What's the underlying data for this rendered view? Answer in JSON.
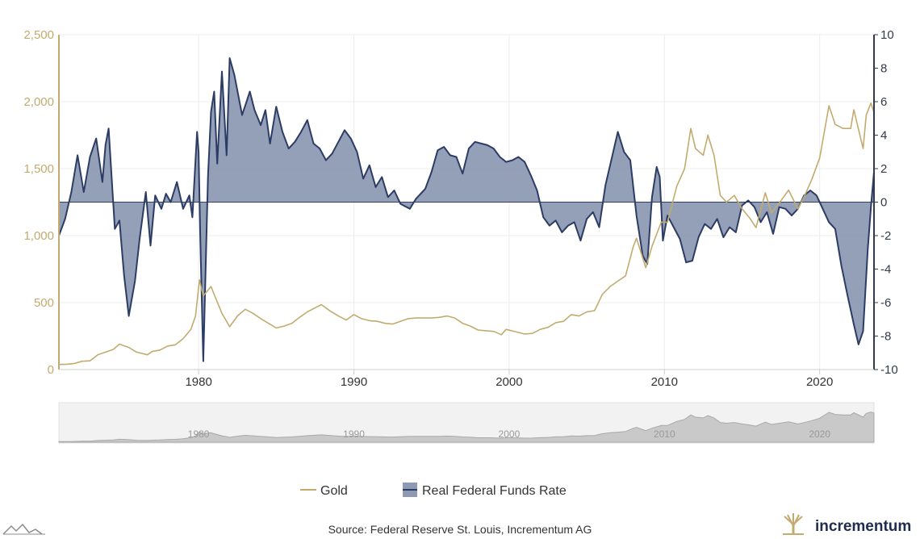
{
  "chart_data": {
    "type": "line",
    "x_range": [
      1971,
      2023.5
    ],
    "x_ticks": [
      "1980",
      "1990",
      "2000",
      "2010",
      "2020"
    ],
    "y_left": {
      "min": 0,
      "max": 2500,
      "ticks": [
        "0",
        "500",
        "1,000",
        "1,500",
        "2,000",
        "2,500"
      ],
      "color": "#c2ab6e"
    },
    "y_right": {
      "min": -10,
      "max": 10,
      "ticks": [
        "-10",
        "-8",
        "-6",
        "-4",
        "-2",
        "0",
        "2",
        "4",
        "6",
        "8",
        "10"
      ],
      "color": "#333a4a"
    },
    "grid": true,
    "legend_position": "bottom-center",
    "series": [
      {
        "name": "Gold",
        "axis": "left",
        "kind": "line",
        "color": "#c2ab6e",
        "points": [
          [
            1971.0,
            38
          ],
          [
            1971.5,
            40
          ],
          [
            1972.0,
            46
          ],
          [
            1972.5,
            62
          ],
          [
            1973.0,
            65
          ],
          [
            1973.5,
            110
          ],
          [
            1974.0,
            130
          ],
          [
            1974.5,
            150
          ],
          [
            1974.9,
            190
          ],
          [
            1975.5,
            165
          ],
          [
            1976.0,
            130
          ],
          [
            1976.7,
            110
          ],
          [
            1977.0,
            135
          ],
          [
            1977.5,
            145
          ],
          [
            1978.0,
            175
          ],
          [
            1978.5,
            185
          ],
          [
            1979.0,
            230
          ],
          [
            1979.5,
            300
          ],
          [
            1979.8,
            400
          ],
          [
            1980.05,
            670
          ],
          [
            1980.3,
            550
          ],
          [
            1980.8,
            620
          ],
          [
            1981.0,
            560
          ],
          [
            1981.5,
            420
          ],
          [
            1982.0,
            320
          ],
          [
            1982.5,
            400
          ],
          [
            1983.0,
            450
          ],
          [
            1983.5,
            420
          ],
          [
            1984.0,
            380
          ],
          [
            1984.5,
            345
          ],
          [
            1985.0,
            310
          ],
          [
            1985.5,
            325
          ],
          [
            1986.0,
            345
          ],
          [
            1986.5,
            390
          ],
          [
            1987.0,
            430
          ],
          [
            1987.5,
            460
          ],
          [
            1987.9,
            485
          ],
          [
            1988.5,
            435
          ],
          [
            1989.0,
            400
          ],
          [
            1989.5,
            370
          ],
          [
            1990.0,
            410
          ],
          [
            1990.5,
            380
          ],
          [
            1991.0,
            365
          ],
          [
            1991.5,
            360
          ],
          [
            1992.0,
            345
          ],
          [
            1992.5,
            340
          ],
          [
            1993.0,
            360
          ],
          [
            1993.5,
            380
          ],
          [
            1994.0,
            385
          ],
          [
            1994.5,
            385
          ],
          [
            1995.0,
            385
          ],
          [
            1995.5,
            390
          ],
          [
            1996.0,
            400
          ],
          [
            1996.5,
            385
          ],
          [
            1997.0,
            345
          ],
          [
            1997.5,
            325
          ],
          [
            1998.0,
            295
          ],
          [
            1998.5,
            290
          ],
          [
            1999.0,
            285
          ],
          [
            1999.5,
            260
          ],
          [
            1999.8,
            300
          ],
          [
            2000.5,
            280
          ],
          [
            2001.0,
            265
          ],
          [
            2001.5,
            270
          ],
          [
            2002.0,
            300
          ],
          [
            2002.5,
            315
          ],
          [
            2003.0,
            350
          ],
          [
            2003.5,
            360
          ],
          [
            2004.0,
            410
          ],
          [
            2004.5,
            400
          ],
          [
            2005.0,
            430
          ],
          [
            2005.5,
            440
          ],
          [
            2006.0,
            560
          ],
          [
            2006.5,
            620
          ],
          [
            2007.0,
            660
          ],
          [
            2007.5,
            700
          ],
          [
            2008.0,
            920
          ],
          [
            2008.2,
            980
          ],
          [
            2008.8,
            760
          ],
          [
            2009.2,
            920
          ],
          [
            2009.8,
            1100
          ],
          [
            2010.2,
            1100
          ],
          [
            2010.8,
            1370
          ],
          [
            2011.3,
            1500
          ],
          [
            2011.7,
            1800
          ],
          [
            2012.0,
            1650
          ],
          [
            2012.5,
            1600
          ],
          [
            2012.8,
            1750
          ],
          [
            2013.2,
            1600
          ],
          [
            2013.6,
            1300
          ],
          [
            2014.0,
            1250
          ],
          [
            2014.5,
            1300
          ],
          [
            2015.0,
            1200
          ],
          [
            2015.5,
            1130
          ],
          [
            2015.9,
            1060
          ],
          [
            2016.5,
            1320
          ],
          [
            2016.9,
            1170
          ],
          [
            2017.5,
            1260
          ],
          [
            2018.0,
            1340
          ],
          [
            2018.6,
            1200
          ],
          [
            2019.0,
            1290
          ],
          [
            2019.5,
            1420
          ],
          [
            2020.0,
            1580
          ],
          [
            2020.6,
            1970
          ],
          [
            2021.0,
            1830
          ],
          [
            2021.5,
            1800
          ],
          [
            2022.0,
            1800
          ],
          [
            2022.2,
            1940
          ],
          [
            2022.8,
            1650
          ],
          [
            2023.0,
            1900
          ],
          [
            2023.3,
            1990
          ],
          [
            2023.5,
            1920
          ]
        ]
      },
      {
        "name": "Real Federal Funds Rate",
        "axis": "right",
        "kind": "area",
        "color": "#2c3c64",
        "fill": "#8e9ab4",
        "points": [
          [
            1971.0,
            -2.0
          ],
          [
            1971.4,
            -1.0
          ],
          [
            1971.8,
            0.6
          ],
          [
            1972.2,
            2.8
          ],
          [
            1972.6,
            0.6
          ],
          [
            1973.0,
            2.7
          ],
          [
            1973.4,
            3.8
          ],
          [
            1973.8,
            1.2
          ],
          [
            1974.0,
            3.4
          ],
          [
            1974.2,
            4.4
          ],
          [
            1974.6,
            -1.6
          ],
          [
            1974.9,
            -1.1
          ],
          [
            1975.2,
            -4.4
          ],
          [
            1975.5,
            -6.8
          ],
          [
            1975.9,
            -4.7
          ],
          [
            1976.2,
            -2.2
          ],
          [
            1976.6,
            0.6
          ],
          [
            1976.9,
            -2.6
          ],
          [
            1977.2,
            0.4
          ],
          [
            1977.6,
            -0.4
          ],
          [
            1977.9,
            0.5
          ],
          [
            1978.2,
            0.0
          ],
          [
            1978.6,
            1.2
          ],
          [
            1979.0,
            -0.4
          ],
          [
            1979.4,
            0.4
          ],
          [
            1979.6,
            -0.9
          ],
          [
            1979.9,
            4.2
          ],
          [
            1980.0,
            3.0
          ],
          [
            1980.1,
            -2.0
          ],
          [
            1980.3,
            -9.5
          ],
          [
            1980.6,
            1.5
          ],
          [
            1980.8,
            5.4
          ],
          [
            1981.0,
            6.6
          ],
          [
            1981.2,
            2.3
          ],
          [
            1981.5,
            7.8
          ],
          [
            1981.8,
            2.8
          ],
          [
            1982.0,
            8.6
          ],
          [
            1982.3,
            7.6
          ],
          [
            1982.8,
            5.2
          ],
          [
            1983.3,
            6.6
          ],
          [
            1983.6,
            5.5
          ],
          [
            1984.0,
            4.6
          ],
          [
            1984.3,
            5.5
          ],
          [
            1984.6,
            3.5
          ],
          [
            1985.0,
            5.7
          ],
          [
            1985.4,
            4.2
          ],
          [
            1985.8,
            3.2
          ],
          [
            1986.2,
            3.6
          ],
          [
            1986.6,
            4.2
          ],
          [
            1987.0,
            4.9
          ],
          [
            1987.4,
            3.5
          ],
          [
            1987.8,
            3.2
          ],
          [
            1988.2,
            2.5
          ],
          [
            1988.6,
            2.9
          ],
          [
            1989.0,
            3.6
          ],
          [
            1989.4,
            4.3
          ],
          [
            1989.8,
            3.8
          ],
          [
            1990.2,
            3.0
          ],
          [
            1990.6,
            1.4
          ],
          [
            1991.0,
            2.2
          ],
          [
            1991.4,
            0.9
          ],
          [
            1991.8,
            1.5
          ],
          [
            1992.2,
            0.3
          ],
          [
            1992.6,
            0.7
          ],
          [
            1993.0,
            -0.1
          ],
          [
            1993.6,
            -0.4
          ],
          [
            1994.0,
            0.2
          ],
          [
            1994.6,
            0.8
          ],
          [
            1995.0,
            1.8
          ],
          [
            1995.4,
            3.1
          ],
          [
            1995.8,
            3.3
          ],
          [
            1996.2,
            2.8
          ],
          [
            1996.6,
            2.7
          ],
          [
            1997.0,
            1.7
          ],
          [
            1997.4,
            3.2
          ],
          [
            1997.8,
            3.6
          ],
          [
            1998.2,
            3.5
          ],
          [
            1998.6,
            3.4
          ],
          [
            1999.0,
            3.2
          ],
          [
            1999.4,
            2.7
          ],
          [
            1999.8,
            2.4
          ],
          [
            2000.2,
            2.5
          ],
          [
            2000.6,
            2.7
          ],
          [
            2001.0,
            2.4
          ],
          [
            2001.4,
            1.6
          ],
          [
            2001.8,
            0.7
          ],
          [
            2002.2,
            -0.9
          ],
          [
            2002.6,
            -1.4
          ],
          [
            2003.0,
            -1.1
          ],
          [
            2003.4,
            -1.8
          ],
          [
            2003.8,
            -1.4
          ],
          [
            2004.2,
            -1.2
          ],
          [
            2004.6,
            -2.3
          ],
          [
            2005.0,
            -1.0
          ],
          [
            2005.4,
            -0.6
          ],
          [
            2005.8,
            -1.5
          ],
          [
            2006.2,
            1.0
          ],
          [
            2006.6,
            2.6
          ],
          [
            2007.0,
            4.2
          ],
          [
            2007.4,
            3.0
          ],
          [
            2007.8,
            2.5
          ],
          [
            2008.2,
            -0.8
          ],
          [
            2008.6,
            -3.2
          ],
          [
            2008.9,
            -3.7
          ],
          [
            2009.2,
            0.3
          ],
          [
            2009.5,
            2.1
          ],
          [
            2009.7,
            1.5
          ],
          [
            2009.9,
            -2.3
          ],
          [
            2010.2,
            -0.8
          ],
          [
            2010.6,
            -1.5
          ],
          [
            2011.0,
            -2.2
          ],
          [
            2011.4,
            -3.6
          ],
          [
            2011.8,
            -3.5
          ],
          [
            2012.2,
            -2.1
          ],
          [
            2012.6,
            -1.3
          ],
          [
            2013.0,
            -1.6
          ],
          [
            2013.4,
            -1.0
          ],
          [
            2013.8,
            -2.1
          ],
          [
            2014.2,
            -1.5
          ],
          [
            2014.6,
            -1.8
          ],
          [
            2015.0,
            -0.2
          ],
          [
            2015.4,
            0.1
          ],
          [
            2015.8,
            -0.3
          ],
          [
            2016.2,
            -1.2
          ],
          [
            2016.6,
            -0.6
          ],
          [
            2017.0,
            -1.9
          ],
          [
            2017.4,
            -0.3
          ],
          [
            2017.8,
            -0.4
          ],
          [
            2018.2,
            -0.8
          ],
          [
            2018.6,
            -0.4
          ],
          [
            2019.0,
            0.4
          ],
          [
            2019.4,
            0.7
          ],
          [
            2019.8,
            0.4
          ],
          [
            2020.2,
            -0.4
          ],
          [
            2020.6,
            -1.2
          ],
          [
            2021.0,
            -1.6
          ],
          [
            2021.4,
            -3.8
          ],
          [
            2021.8,
            -5.6
          ],
          [
            2022.2,
            -7.3
          ],
          [
            2022.5,
            -8.5
          ],
          [
            2022.8,
            -7.7
          ],
          [
            2023.1,
            -2.8
          ],
          [
            2023.3,
            -0.3
          ],
          [
            2023.5,
            1.8
          ]
        ]
      }
    ],
    "navigator": {
      "ticks": [
        "1980",
        "1990",
        "2000",
        "2010",
        "2020"
      ]
    }
  },
  "legend": {
    "gold_label": "Gold",
    "rffr_label": "Real Federal Funds Rate"
  },
  "footer": {
    "source": "Source: Federal Reserve St. Louis, Incrementum AG",
    "brand": "incrementum"
  }
}
